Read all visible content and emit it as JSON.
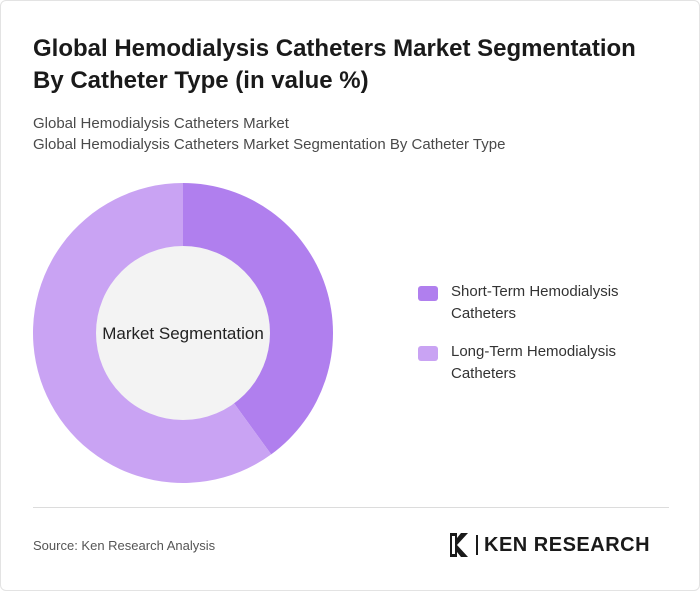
{
  "header": {
    "title": "Global Hemodialysis Catheters Market Segmentation By Catheter Type (in value %)",
    "subtitle_line1": "Global Hemodialysis Catheters Market",
    "subtitle_line2": "Global Hemodialysis Catheters Market Segmentation By Catheter Type"
  },
  "chart_data": {
    "type": "pie",
    "style": "donut",
    "center_label": "Market Segmentation",
    "categories": [
      "Short-Term Hemodialysis Catheters",
      "Long-Term Hemodialysis Catheters"
    ],
    "values": [
      40,
      60
    ],
    "colors": [
      "#b07fee",
      "#c9a3f3"
    ],
    "legend_position": "right"
  },
  "footer": {
    "source": "Source: Ken Research Analysis",
    "logo_text": "KEN RESEARCH"
  }
}
